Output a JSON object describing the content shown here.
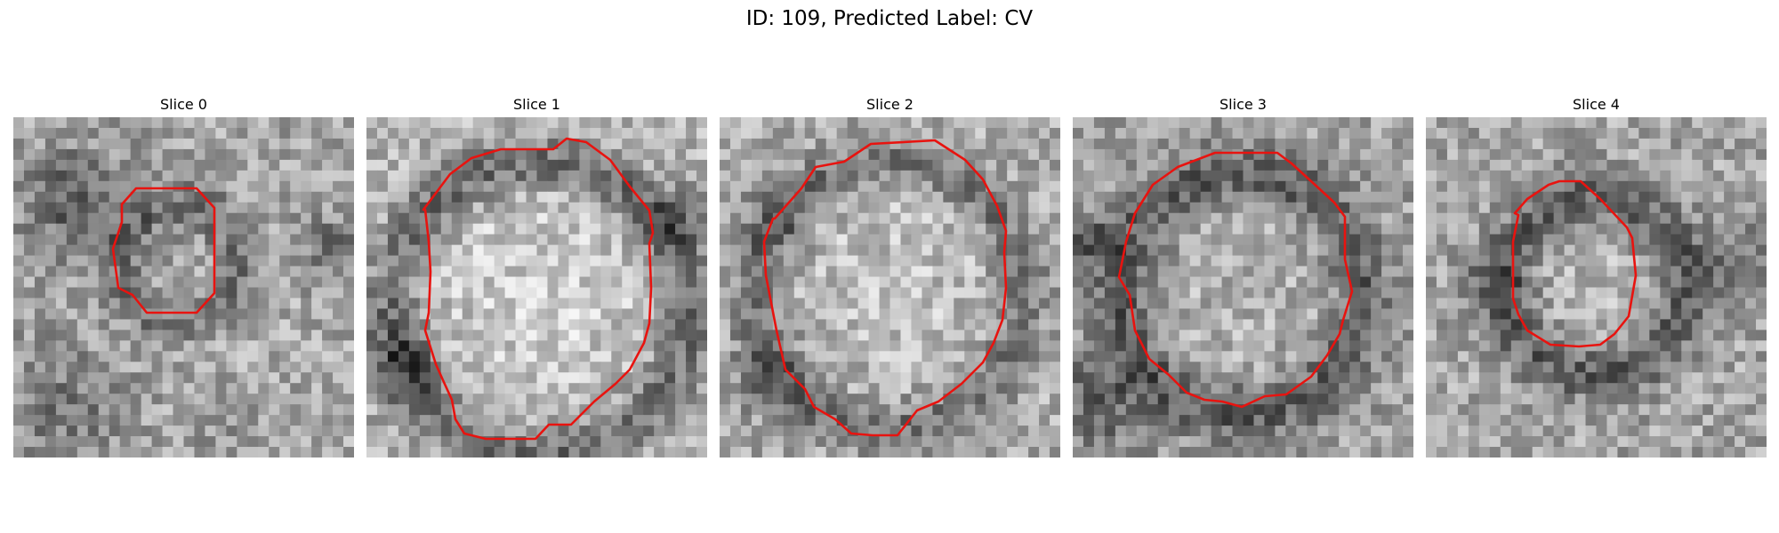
{
  "figure": {
    "title": "ID: 109, Predicted Label: CV"
  },
  "panels": [
    {
      "title": "Slice 0",
      "gray_mean": 165,
      "contour_color": "#e8130f"
    },
    {
      "title": "Slice 1",
      "gray_mean": 175,
      "contour_color": "#e8130f"
    },
    {
      "title": "Slice 2",
      "gray_mean": 170,
      "contour_color": "#e8130f"
    },
    {
      "title": "Slice 3",
      "gray_mean": 160,
      "contour_color": "#e8130f"
    },
    {
      "title": "Slice 4",
      "gray_mean": 165,
      "contour_color": "#e8130f"
    }
  ]
}
